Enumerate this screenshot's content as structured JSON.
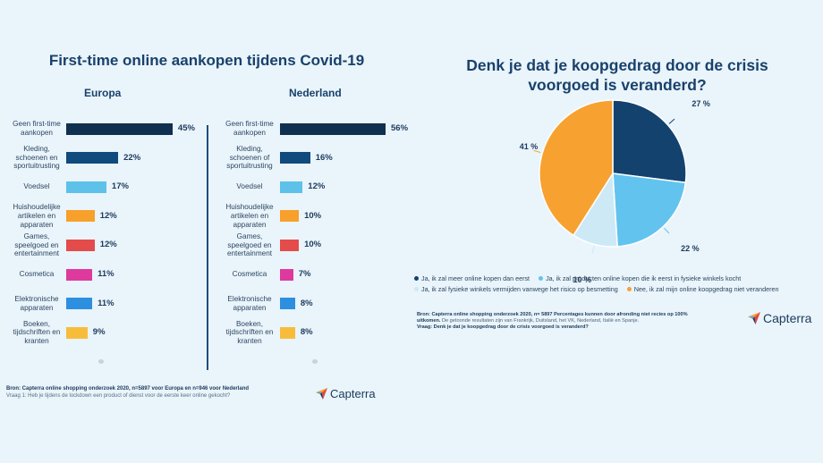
{
  "left": {
    "title": "First-time online aankopen tijdens Covid-19",
    "europe_title": "Europa",
    "nl_title": "Nederland",
    "source_bold": "Bron: Capterra online shopping onderzoek 2020, n=5897 voor Europa en n=946 voor Nederland",
    "question": "Vraag 1: Heb je tijdens de lockdown een product of dienst voor de eerste keer online gekocht?",
    "logo_text": "Capterra"
  },
  "right": {
    "title_line1": "Denk je dat je koopgedrag door de crisis",
    "title_line2": "voorgoed is veranderd?",
    "notes_bold": "Bron: Capterra online shopping onderzoek 2020, n= 5897 Percentages kunnen door afronding niet recies op 100% uitkomen.",
    "notes_rest": " De getoonde resultaten zijn van Frankrijk, Duitsland, het VK, Nederland, Italië en Spanje.",
    "notes_question": "Vraag: Denk je dat je koopgedrag door de crisis voorgoed is veranderd?",
    "logo_text": "Capterra"
  },
  "chart_data": [
    {
      "type": "bar",
      "orientation": "horizontal",
      "title": "Europa",
      "categories": [
        [
          "Geen first-time",
          "aankopen"
        ],
        [
          "Kleding,",
          "schoenen en",
          "sportuitrusting"
        ],
        [
          "Voedsel"
        ],
        [
          "Huishoudelijke",
          "artikelen en",
          "apparaten"
        ],
        [
          "Games,",
          "speelgoed en",
          "entertainment"
        ],
        [
          "Cosmetica"
        ],
        [
          "Elektronische",
          "apparaten"
        ],
        [
          "Boeken,",
          "tijdschriften en",
          "kranten"
        ]
      ],
      "values": [
        45,
        22,
        17,
        12,
        12,
        11,
        11,
        9
      ],
      "labels": [
        "45%",
        "22%",
        "17%",
        "12%",
        "12%",
        "11%",
        "11%",
        "9%"
      ],
      "colors": [
        "#10304f",
        "#114a7c",
        "#5dc1ea",
        "#f7a02b",
        "#e44b4b",
        "#de3a9e",
        "#2d8fe0",
        "#f7bd3a"
      ],
      "xlim": [
        0,
        56
      ]
    },
    {
      "type": "bar",
      "orientation": "horizontal",
      "title": "Nederland",
      "categories": [
        [
          "Geen first-time",
          "aankopen"
        ],
        [
          "Kleding,",
          "schoenen of",
          "sportuitrusting"
        ],
        [
          "Voedsel"
        ],
        [
          "Huishoudelijke",
          "artikelen en",
          "apparaten"
        ],
        [
          "Games,",
          "speelgoed en",
          "entertainment"
        ],
        [
          "Cosmetica"
        ],
        [
          "Elektronische",
          "apparaten"
        ],
        [
          "Boeken,",
          "tijdschriften en",
          "kranten"
        ]
      ],
      "values": [
        56,
        16,
        12,
        10,
        10,
        7,
        8,
        8
      ],
      "labels": [
        "56%",
        "16%",
        "12%",
        "10%",
        "10%",
        "7%",
        "8%",
        "8%"
      ],
      "colors": [
        "#10304f",
        "#114a7c",
        "#5dc1ea",
        "#f7a02b",
        "#e44b4b",
        "#de3a9e",
        "#2d8fe0",
        "#f7bd3a"
      ],
      "xlim": [
        0,
        56
      ]
    },
    {
      "type": "pie",
      "title": "Denk je dat je koopgedrag door de crisis voorgoed is veranderd?",
      "slices": [
        {
          "name": "Ja, ik zal meer online kopen dan eerst",
          "value": 27,
          "label": "27 %",
          "color": "#14426f"
        },
        {
          "name": "Ja, ik zal producten online kopen die ik eerst in fysieke winkels kocht",
          "value": 22,
          "label": "22 %",
          "color": "#62c3ee"
        },
        {
          "name": "Ja, ik zal fysieke winkels vermijden vanwege het risico op besmetting",
          "value": 10,
          "label": "10 %",
          "color": "#cde9f6"
        },
        {
          "name": "Nee, ik zal mijn online koopgedrag niet veranderen",
          "value": 41,
          "label": "41 %",
          "color": "#f7a131"
        }
      ],
      "legend_position": "bottom"
    }
  ]
}
